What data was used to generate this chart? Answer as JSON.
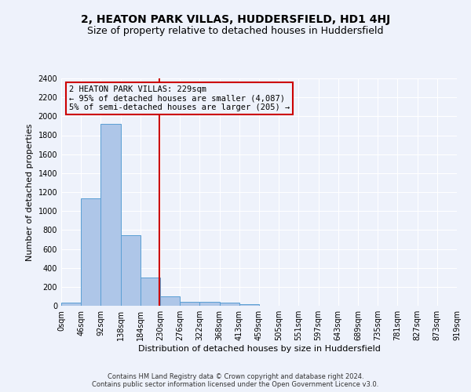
{
  "title": "2, HEATON PARK VILLAS, HUDDERSFIELD, HD1 4HJ",
  "subtitle": "Size of property relative to detached houses in Huddersfield",
  "xlabel": "Distribution of detached houses by size in Huddersfield",
  "ylabel": "Number of detached properties",
  "footer_line1": "Contains HM Land Registry data © Crown copyright and database right 2024.",
  "footer_line2": "Contains public sector information licensed under the Open Government Licence v3.0.",
  "bin_labels": [
    "0sqm",
    "46sqm",
    "92sqm",
    "138sqm",
    "184sqm",
    "230sqm",
    "276sqm",
    "322sqm",
    "368sqm",
    "413sqm",
    "459sqm",
    "505sqm",
    "551sqm",
    "597sqm",
    "643sqm",
    "689sqm",
    "735sqm",
    "781sqm",
    "827sqm",
    "873sqm",
    "919sqm"
  ],
  "bar_values": [
    35,
    1130,
    1920,
    745,
    300,
    100,
    45,
    40,
    30,
    20,
    0,
    0,
    0,
    0,
    0,
    0,
    0,
    0,
    0,
    0
  ],
  "bar_color": "#aec6e8",
  "bar_edge_color": "#5a9fd4",
  "property_size": 229,
  "property_line_color": "#cc0000",
  "annotation_text_line1": "2 HEATON PARK VILLAS: 229sqm",
  "annotation_text_line2": "← 95% of detached houses are smaller (4,087)",
  "annotation_text_line3": "5% of semi-detached houses are larger (205) →",
  "annotation_box_color": "#cc0000",
  "ylim": [
    0,
    2400
  ],
  "yticks": [
    0,
    200,
    400,
    600,
    800,
    1000,
    1200,
    1400,
    1600,
    1800,
    2000,
    2200,
    2400
  ],
  "bin_width": 46,
  "background_color": "#eef2fb",
  "grid_color": "#ffffff",
  "title_fontsize": 10,
  "subtitle_fontsize": 9,
  "axis_label_fontsize": 8,
  "tick_fontsize": 7,
  "footer_fontsize": 6,
  "annotation_fontsize": 7.5
}
